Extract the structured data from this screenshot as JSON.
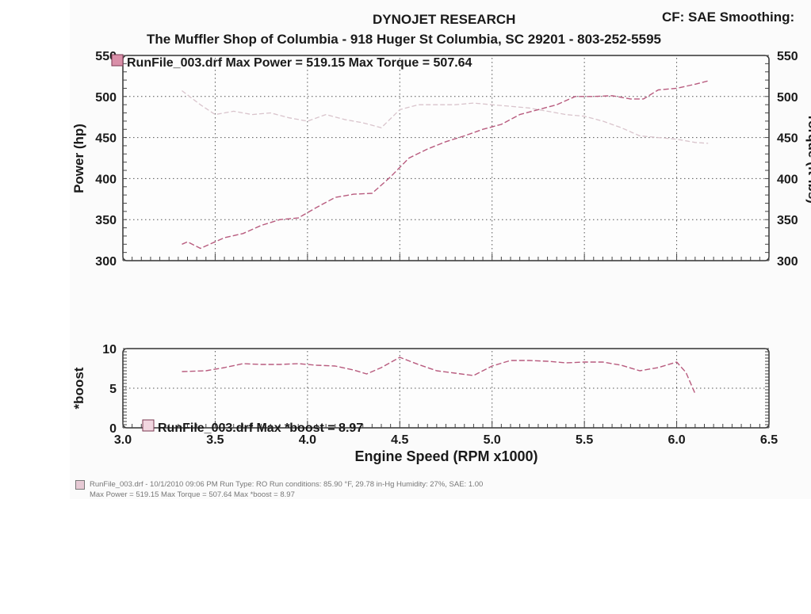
{
  "header": {
    "brand": "DYNOJET RESEARCH",
    "shop": "The Muffler Shop of Columbia - 918 Huger St  Columbia, SC  29201 - 803-252-5595",
    "cf_smoothing": "CF: SAE  Smoothing:"
  },
  "footer": {
    "line1": "RunFile_003.drf - 10/1/2010 09:06 PM  Run Type: RO  Run conditions: 85.90 °F, 29.78 in-Hg  Humidity: 27%, SAE: 1.00",
    "line2": "Max Power = 519.15  Max Torque = 507.64  Max *boost = 8.97"
  },
  "colors": {
    "power": "#b85b7e",
    "torque": "#d9c4cc",
    "boost": "#b85b7e",
    "grid": "#555555"
  },
  "chart_data": [
    {
      "type": "line",
      "legend": "RunFile_003.drf Max Power = 519.15     Max Torque = 507.64",
      "ylabel": "Power (hp)",
      "ylabel_right": "Torque (ft-lbs)",
      "ylim": [
        300,
        550
      ],
      "yticks": [
        300,
        350,
        400,
        450,
        500,
        550
      ],
      "xlim": [
        3.0,
        6.5
      ],
      "grid": true,
      "series": [
        {
          "name": "Power",
          "x": [
            3.32,
            3.35,
            3.42,
            3.45,
            3.55,
            3.65,
            3.75,
            3.85,
            3.95,
            4.05,
            4.15,
            4.25,
            4.35,
            4.45,
            4.55,
            4.65,
            4.75,
            4.85,
            4.95,
            5.05,
            5.15,
            5.25,
            5.35,
            5.45,
            5.55,
            5.65,
            5.75,
            5.82,
            5.9,
            6.0,
            6.1,
            6.17
          ],
          "values": [
            320,
            323,
            315,
            318,
            328,
            333,
            343,
            350,
            352,
            365,
            377,
            381,
            382,
            402,
            425,
            436,
            445,
            452,
            460,
            466,
            478,
            484,
            490,
            500,
            500,
            501,
            497,
            497,
            508,
            510,
            515,
            519
          ]
        },
        {
          "name": "Torque",
          "x": [
            3.32,
            3.42,
            3.5,
            3.6,
            3.7,
            3.8,
            3.9,
            4.0,
            4.1,
            4.2,
            4.3,
            4.4,
            4.5,
            4.6,
            4.7,
            4.8,
            4.9,
            5.0,
            5.1,
            5.2,
            5.3,
            5.4,
            5.5,
            5.6,
            5.7,
            5.8,
            5.9,
            6.0,
            6.1,
            6.17
          ],
          "values": [
            507,
            490,
            478,
            482,
            478,
            480,
            474,
            470,
            478,
            472,
            468,
            462,
            484,
            490,
            490,
            490,
            492,
            490,
            488,
            486,
            482,
            478,
            476,
            470,
            462,
            452,
            450,
            448,
            444,
            443
          ]
        }
      ]
    },
    {
      "type": "line",
      "legend": "RunFile_003.drf Max *boost = 8.97",
      "ylabel": "*boost",
      "xlabel": "Engine Speed (RPM x1000)",
      "ylim": [
        0,
        10
      ],
      "yticks": [
        0,
        5,
        10
      ],
      "xlim": [
        3.0,
        6.5
      ],
      "xticks": [
        "3.0",
        "3.5",
        "4.0",
        "4.5",
        "5.0",
        "5.5",
        "6.0",
        "6.5"
      ],
      "grid": true,
      "series": [
        {
          "name": "*boost",
          "x": [
            3.32,
            3.45,
            3.55,
            3.65,
            3.75,
            3.85,
            3.95,
            4.05,
            4.15,
            4.25,
            4.32,
            4.4,
            4.5,
            4.6,
            4.7,
            4.8,
            4.9,
            5.0,
            5.1,
            5.2,
            5.3,
            5.4,
            5.5,
            5.6,
            5.7,
            5.8,
            5.9,
            6.0,
            6.05,
            6.1
          ],
          "values": [
            7.1,
            7.2,
            7.6,
            8.1,
            8.0,
            8.0,
            8.1,
            7.9,
            7.8,
            7.3,
            6.8,
            7.6,
            8.9,
            8.0,
            7.2,
            6.9,
            6.6,
            7.8,
            8.5,
            8.5,
            8.4,
            8.2,
            8.3,
            8.3,
            7.9,
            7.2,
            7.6,
            8.3,
            7.0,
            4.3
          ]
        }
      ]
    }
  ]
}
